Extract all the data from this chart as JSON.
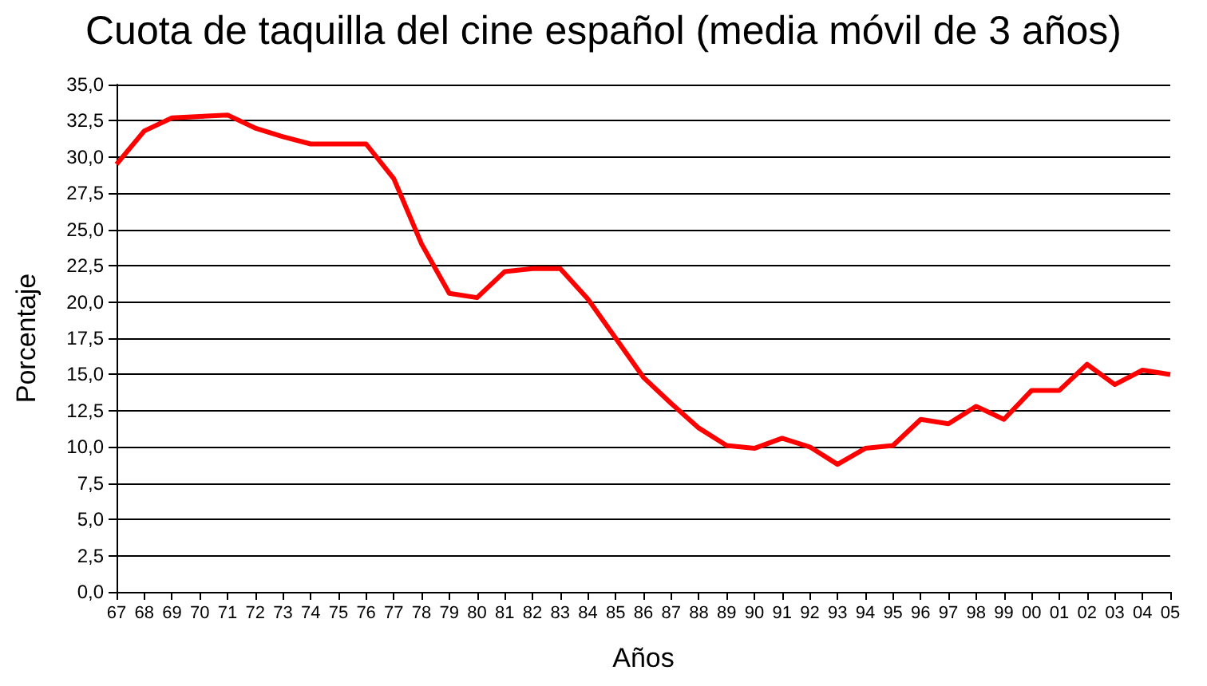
{
  "chart_data": {
    "type": "line",
    "title": "Cuota de taquilla del cine español (media móvil de 3 años)",
    "xlabel": "Años",
    "ylabel": "Porcentaje",
    "categories": [
      "67",
      "68",
      "69",
      "70",
      "71",
      "72",
      "73",
      "74",
      "75",
      "76",
      "77",
      "78",
      "79",
      "80",
      "81",
      "82",
      "83",
      "84",
      "85",
      "86",
      "87",
      "88",
      "89",
      "90",
      "91",
      "92",
      "93",
      "94",
      "95",
      "96",
      "97",
      "98",
      "99",
      "00",
      "01",
      "02",
      "03",
      "04",
      "05"
    ],
    "series": [
      {
        "color": "#ff0000",
        "values": [
          29.5,
          31.8,
          32.7,
          32.8,
          32.9,
          32.0,
          31.4,
          30.9,
          30.9,
          30.9,
          28.5,
          24.0,
          20.6,
          20.3,
          22.1,
          22.3,
          22.3,
          20.2,
          17.5,
          14.8,
          13.0,
          11.3,
          10.1,
          9.9,
          10.6,
          10.0,
          8.8,
          9.9,
          10.1,
          11.9,
          11.6,
          12.8,
          11.9,
          13.9,
          13.9,
          15.7,
          14.3,
          15.3,
          15.0
        ]
      }
    ],
    "ylim": [
      0,
      35
    ],
    "yticks": [
      {
        "value": 0,
        "label": "0,0"
      },
      {
        "value": 2.5,
        "label": "2,5"
      },
      {
        "value": 5,
        "label": "5,0"
      },
      {
        "value": 7.5,
        "label": "7,5"
      },
      {
        "value": 10,
        "label": "10,0"
      },
      {
        "value": 12.5,
        "label": "12,5"
      },
      {
        "value": 15,
        "label": "15,0"
      },
      {
        "value": 17.5,
        "label": "17,5"
      },
      {
        "value": 20,
        "label": "20,0"
      },
      {
        "value": 22.5,
        "label": "22,5"
      },
      {
        "value": 25,
        "label": "25,0"
      },
      {
        "value": 27.5,
        "label": "27,5"
      },
      {
        "value": 30,
        "label": "30,0"
      },
      {
        "value": 32.5,
        "label": "32,5"
      },
      {
        "value": 35,
        "label": "35,0"
      }
    ],
    "grid": "y",
    "marker": "none",
    "line_style": "solid"
  }
}
